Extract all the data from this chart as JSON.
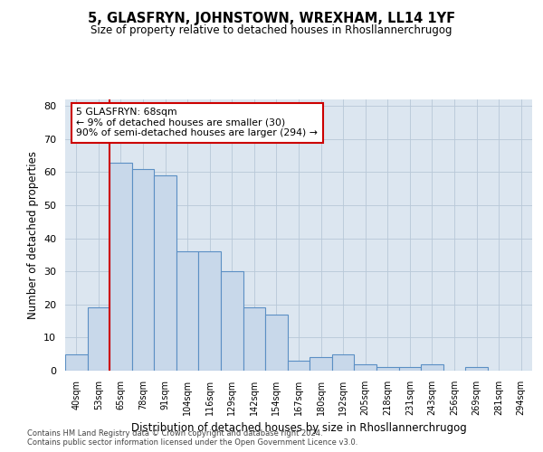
{
  "title": "5, GLASFRYN, JOHNSTOWN, WREXHAM, LL14 1YF",
  "subtitle": "Size of property relative to detached houses in Rhosllannerchrugog",
  "xlabel": "Distribution of detached houses by size in Rhosllannerchrugog",
  "ylabel": "Number of detached properties",
  "categories": [
    "40sqm",
    "53sqm",
    "65sqm",
    "78sqm",
    "91sqm",
    "104sqm",
    "116sqm",
    "129sqm",
    "142sqm",
    "154sqm",
    "167sqm",
    "180sqm",
    "192sqm",
    "205sqm",
    "218sqm",
    "231sqm",
    "243sqm",
    "256sqm",
    "269sqm",
    "281sqm",
    "294sqm"
  ],
  "values": [
    5,
    19,
    63,
    61,
    59,
    36,
    36,
    30,
    19,
    17,
    3,
    4,
    5,
    2,
    1,
    1,
    2,
    0,
    1,
    0,
    0
  ],
  "bar_color": "#c8d8ea",
  "bar_edge_color": "#5b8fc4",
  "vline_x_index": 2,
  "vline_color": "#cc0000",
  "annotation_text": "5 GLASFRYN: 68sqm\n← 9% of detached houses are smaller (30)\n90% of semi-detached houses are larger (294) →",
  "annotation_box_facecolor": "#ffffff",
  "annotation_box_edgecolor": "#cc0000",
  "ylim": [
    0,
    82
  ],
  "yticks": [
    0,
    10,
    20,
    30,
    40,
    50,
    60,
    70,
    80
  ],
  "grid_color": "#b8c8d8",
  "bg_color": "#dce6f0",
  "footer1": "Contains HM Land Registry data © Crown copyright and database right 2024.",
  "footer2": "Contains public sector information licensed under the Open Government Licence v3.0."
}
